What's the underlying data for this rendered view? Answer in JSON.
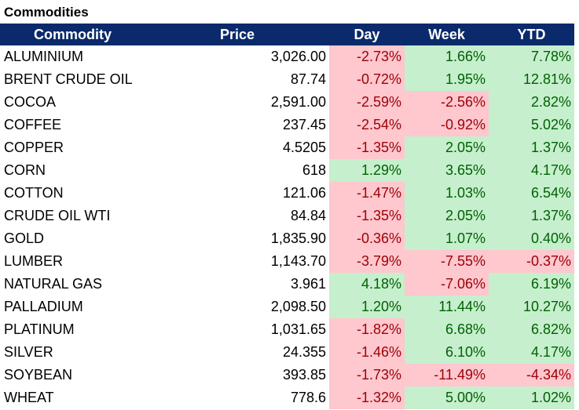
{
  "title": "Commodities",
  "colors": {
    "header_bg": "#0b2a6b",
    "header_text": "#ffffff",
    "negative_bg": "#ffc7ce",
    "negative_text": "#9c0006",
    "positive_bg": "#c6efce",
    "positive_text": "#006100"
  },
  "columns": [
    "Commodity",
    "Price",
    "Day",
    "Week",
    "YTD"
  ],
  "rows": [
    {
      "name": "ALUMINIUM",
      "price": "3,026.00",
      "day": "-2.73%",
      "week": "1.66%",
      "ytd": "7.78%"
    },
    {
      "name": "BRENT CRUDE OIL",
      "price": "87.74",
      "day": "-0.72%",
      "week": "1.95%",
      "ytd": "12.81%"
    },
    {
      "name": "COCOA",
      "price": "2,591.00",
      "day": "-2.59%",
      "week": "-2.56%",
      "ytd": "2.82%"
    },
    {
      "name": "COFFEE",
      "price": "237.45",
      "day": "-2.54%",
      "week": "-0.92%",
      "ytd": "5.02%"
    },
    {
      "name": "COPPER",
      "price": "4.5205",
      "day": "-1.35%",
      "week": "2.05%",
      "ytd": "1.37%"
    },
    {
      "name": "CORN",
      "price": "618",
      "day": "1.29%",
      "week": "3.65%",
      "ytd": "4.17%"
    },
    {
      "name": "COTTON",
      "price": "121.06",
      "day": "-1.47%",
      "week": "1.03%",
      "ytd": "6.54%"
    },
    {
      "name": "CRUDE OIL WTI",
      "price": "84.84",
      "day": "-1.35%",
      "week": "2.05%",
      "ytd": "1.37%"
    },
    {
      "name": "GOLD",
      "price": "1,835.90",
      "day": "-0.36%",
      "week": "1.07%",
      "ytd": "0.40%"
    },
    {
      "name": "LUMBER",
      "price": "1,143.70",
      "day": "-3.79%",
      "week": "-7.55%",
      "ytd": "-0.37%"
    },
    {
      "name": "NATURAL GAS",
      "price": "3.961",
      "day": "4.18%",
      "week": "-7.06%",
      "ytd": "6.19%"
    },
    {
      "name": "PALLADIUM",
      "price": "2,098.50",
      "day": "1.20%",
      "week": "11.44%",
      "ytd": "10.27%"
    },
    {
      "name": "PLATINUM",
      "price": "1,031.65",
      "day": "-1.82%",
      "week": "6.68%",
      "ytd": "6.82%"
    },
    {
      "name": "SILVER",
      "price": "24.355",
      "day": "-1.46%",
      "week": "6.10%",
      "ytd": "4.17%"
    },
    {
      "name": "SOYBEAN",
      "price": "393.85",
      "day": "-1.73%",
      "week": "-11.49%",
      "ytd": "-4.34%"
    },
    {
      "name": "WHEAT",
      "price": "778.6",
      "day": "-1.32%",
      "week": "5.00%",
      "ytd": "1.02%"
    }
  ]
}
